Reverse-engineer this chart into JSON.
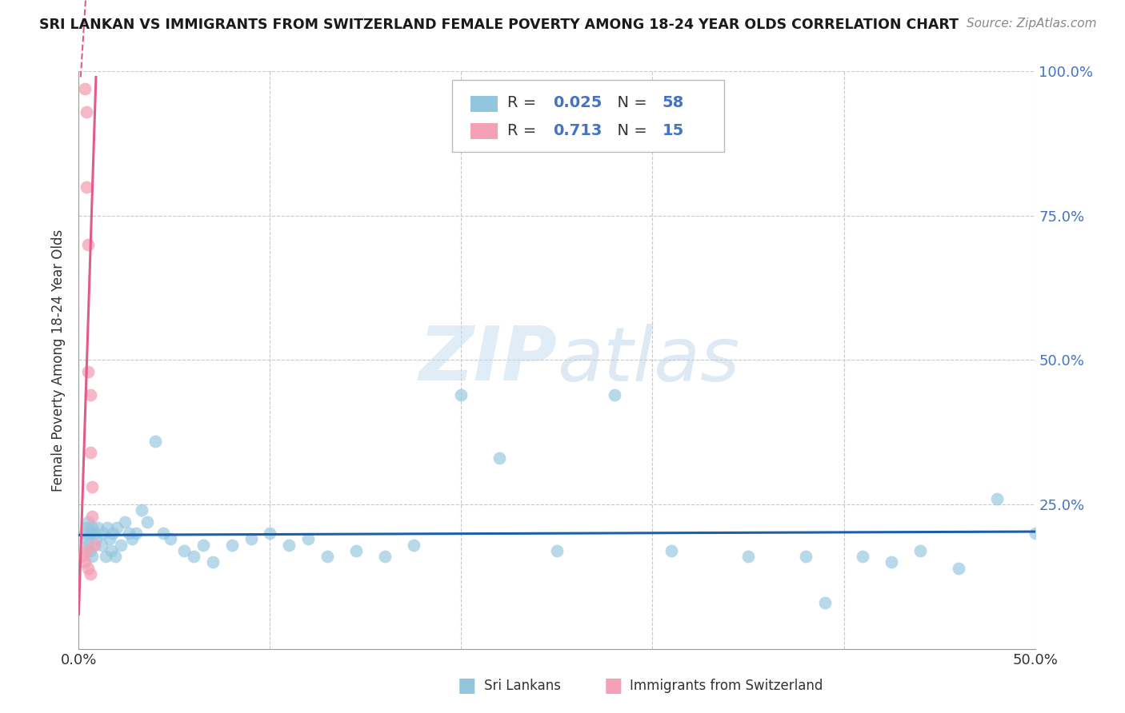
{
  "title": "SRI LANKAN VS IMMIGRANTS FROM SWITZERLAND FEMALE POVERTY AMONG 18-24 YEAR OLDS CORRELATION CHART",
  "source": "Source: ZipAtlas.com",
  "ylabel": "Female Poverty Among 18-24 Year Olds",
  "blue_color": "#92c5de",
  "pink_color": "#f4a0b5",
  "blue_line_color": "#1a5fa8",
  "pink_line_color": "#e05c8a",
  "grid_color": "#c8c8c8",
  "legend_r_blue": "0.025",
  "legend_n_blue": "58",
  "legend_r_pink": "0.713",
  "legend_n_pink": "15",
  "label_color": "#4472c4",
  "text_color": "#333333",
  "xlim": [
    0.0,
    0.5
  ],
  "ylim": [
    0.0,
    1.0
  ],
  "blue_scatter_x": [
    0.003,
    0.004,
    0.004,
    0.005,
    0.005,
    0.006,
    0.006,
    0.007,
    0.007,
    0.008,
    0.009,
    0.01,
    0.012,
    0.013,
    0.014,
    0.015,
    0.016,
    0.017,
    0.018,
    0.019,
    0.02,
    0.022,
    0.024,
    0.026,
    0.028,
    0.03,
    0.033,
    0.036,
    0.04,
    0.044,
    0.048,
    0.055,
    0.06,
    0.065,
    0.07,
    0.08,
    0.09,
    0.1,
    0.11,
    0.12,
    0.13,
    0.145,
    0.16,
    0.175,
    0.2,
    0.22,
    0.25,
    0.28,
    0.31,
    0.35,
    0.38,
    0.39,
    0.41,
    0.425,
    0.44,
    0.46,
    0.48,
    0.5
  ],
  "blue_scatter_y": [
    0.2,
    0.21,
    0.19,
    0.22,
    0.18,
    0.2,
    0.17,
    0.21,
    0.16,
    0.2,
    0.19,
    0.21,
    0.18,
    0.2,
    0.16,
    0.21,
    0.19,
    0.17,
    0.2,
    0.16,
    0.21,
    0.18,
    0.22,
    0.2,
    0.19,
    0.2,
    0.24,
    0.22,
    0.36,
    0.2,
    0.19,
    0.17,
    0.16,
    0.18,
    0.15,
    0.18,
    0.19,
    0.2,
    0.18,
    0.19,
    0.16,
    0.17,
    0.16,
    0.18,
    0.44,
    0.33,
    0.17,
    0.44,
    0.17,
    0.16,
    0.16,
    0.08,
    0.16,
    0.15,
    0.17,
    0.14,
    0.26,
    0.2
  ],
  "pink_scatter_x": [
    0.003,
    0.004,
    0.004,
    0.005,
    0.005,
    0.006,
    0.006,
    0.007,
    0.007,
    0.008,
    0.002,
    0.003,
    0.004,
    0.005,
    0.006
  ],
  "pink_scatter_y": [
    0.97,
    0.93,
    0.8,
    0.7,
    0.48,
    0.44,
    0.34,
    0.28,
    0.23,
    0.18,
    0.16,
    0.15,
    0.17,
    0.14,
    0.13
  ],
  "blue_trend_y_intercept": 0.197,
  "blue_trend_slope": 0.012,
  "pink_trend_y_intercept": 0.05,
  "pink_trend_slope": 120.0
}
